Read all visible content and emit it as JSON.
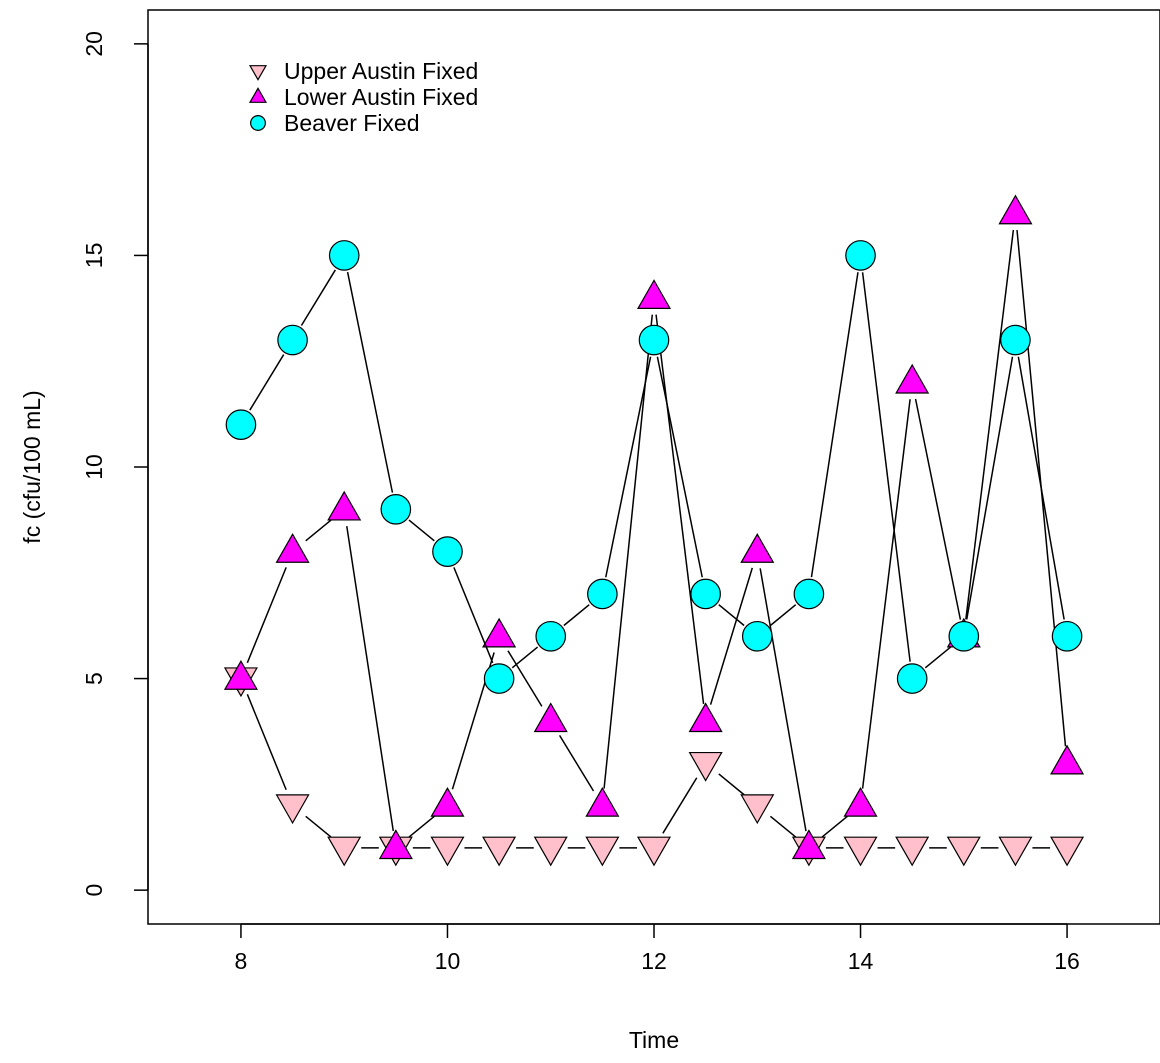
{
  "chart_data": {
    "type": "line",
    "title": "",
    "xlabel": "Time",
    "ylabel": "fc (cfu/100 mL)",
    "xlim": [
      7.1,
      16.9
    ],
    "ylim": [
      -0.8,
      20.8
    ],
    "xticks": [
      8,
      10,
      12,
      14,
      16
    ],
    "yticks": [
      0,
      5,
      10,
      15,
      20
    ],
    "grid": false,
    "legend_position": "top-left",
    "x": [
      8,
      8.5,
      9,
      9.5,
      10,
      10.5,
      11,
      11.5,
      12,
      12.5,
      13,
      13.5,
      14,
      14.5,
      15,
      15.5,
      16
    ],
    "series": [
      {
        "name": "Upper Austin Fixed",
        "marker": "triangle-down",
        "fill": "#FFC0CB",
        "values": [
          5,
          2,
          1,
          1,
          1,
          1,
          1,
          1,
          1,
          3,
          2,
          1,
          1,
          1,
          1,
          1,
          1
        ]
      },
      {
        "name": "Lower Austin Fixed",
        "marker": "triangle-up",
        "fill": "#FF00FF",
        "values": [
          5,
          8,
          9,
          1,
          2,
          6,
          4,
          2,
          14,
          4,
          8,
          1,
          2,
          12,
          6,
          16,
          3
        ]
      },
      {
        "name": "Beaver Fixed",
        "marker": "circle",
        "fill": "#00FFFF",
        "values": [
          11,
          13,
          15,
          9,
          8,
          5,
          6,
          7,
          13,
          7,
          6,
          7,
          15,
          5,
          6,
          13,
          6
        ]
      }
    ]
  }
}
